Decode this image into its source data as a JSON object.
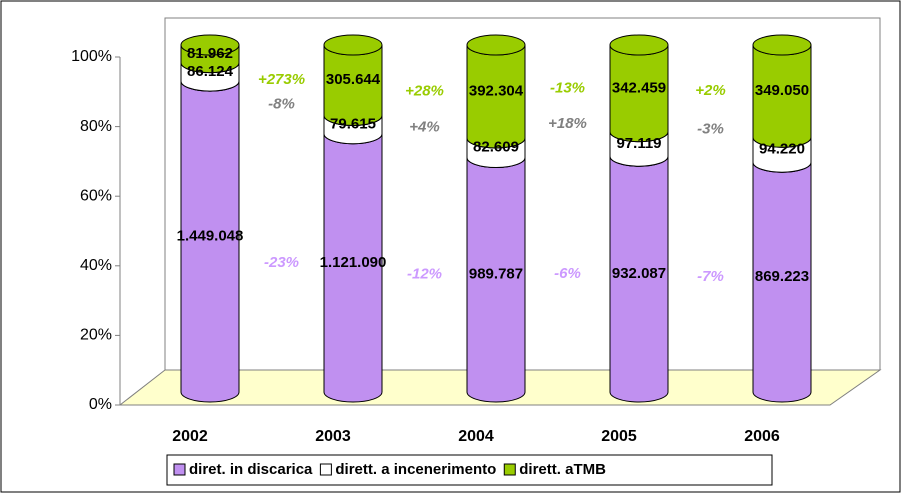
{
  "chart_data": {
    "type": "bar",
    "stacking": "percent",
    "categories": [
      "2002",
      "2003",
      "2004",
      "2005",
      "2006"
    ],
    "series": [
      {
        "name": "diret. in discarica",
        "color": "#c090f0",
        "change_color": "#cc99ff",
        "values": [
          1449048,
          1121090,
          989787,
          932087,
          869223
        ],
        "value_labels": [
          "1.449.048",
          "1.121.090",
          "989.787",
          "932.087",
          "869.223"
        ],
        "change_labels": [
          "-23%",
          "-12%",
          "-6%",
          "-7%"
        ]
      },
      {
        "name": "dirett. a incenerimento",
        "color": "#ffffff",
        "change_color": "#808080",
        "values": [
          86124,
          79615,
          82609,
          97119,
          94220
        ],
        "value_labels": [
          "86.124",
          "79.615",
          "82.609",
          "97.119",
          "94.220"
        ],
        "change_labels": [
          "-8%",
          "+4%",
          "+18%",
          "-3%"
        ]
      },
      {
        "name": "dirett. aTMB",
        "color": "#99cc00",
        "change_color": "#99cc00",
        "values": [
          81962,
          305644,
          392304,
          342459,
          349050
        ],
        "value_labels": [
          "81.962",
          "305.644",
          "392.304",
          "342.459",
          "349.050"
        ],
        "change_labels": [
          "+273%",
          "+28%",
          "-13%",
          "+2%"
        ]
      }
    ],
    "ylim": [
      0,
      100
    ],
    "yticks": [
      {
        "value": 0,
        "label": "0%"
      },
      {
        "value": 20,
        "label": "20%"
      },
      {
        "value": 40,
        "label": "40%"
      },
      {
        "value": 60,
        "label": "60%"
      },
      {
        "value": 80,
        "label": "80%"
      },
      {
        "value": 100,
        "label": "100%"
      }
    ],
    "floor_color": "#ffffcc"
  }
}
